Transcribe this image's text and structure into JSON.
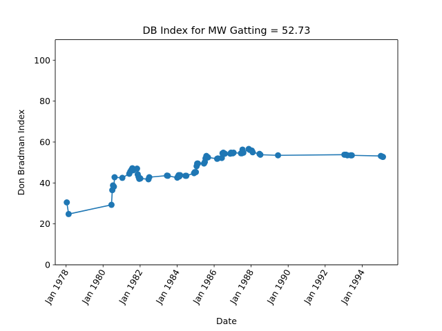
{
  "chart_data": {
    "type": "line",
    "title": "DB Index for MW Gatting = 52.73",
    "xlabel": "Date",
    "ylabel": "Don Bradman Index",
    "xlim": [
      "1977-06-01",
      "1995-12-05"
    ],
    "ylim": [
      0,
      110
    ],
    "grid": false,
    "color": "#1f77b4",
    "x_ticks": [
      {
        "date": "1978-01-01",
        "label": "Jan 1978"
      },
      {
        "date": "1980-01-01",
        "label": "Jan 1980"
      },
      {
        "date": "1982-01-01",
        "label": "Jan 1982"
      },
      {
        "date": "1984-01-01",
        "label": "Jan 1984"
      },
      {
        "date": "1986-01-01",
        "label": "Jan 1986"
      },
      {
        "date": "1988-01-01",
        "label": "Jan 1988"
      },
      {
        "date": "1990-01-01",
        "label": "Jan 1990"
      },
      {
        "date": "1992-01-01",
        "label": "Jan 1992"
      },
      {
        "date": "1994-01-01",
        "label": "Jan 1994"
      }
    ],
    "y_ticks": [
      0,
      20,
      40,
      60,
      80,
      100
    ],
    "series": [
      {
        "x": [
          "1978-01-15",
          "1978-02-20",
          "1980-06-15",
          "1980-07-01",
          "1980-07-15",
          "1980-08-01",
          "1980-08-15",
          "1981-01-15",
          "1981-06-01",
          "1981-06-20",
          "1981-07-15",
          "1981-08-01",
          "1981-08-15",
          "1981-09-01",
          "1981-11-01",
          "1981-11-15",
          "1981-12-01",
          "1981-12-15",
          "1982-01-05",
          "1982-06-15",
          "1982-07-01",
          "1983-06-15",
          "1983-07-01",
          "1984-01-05",
          "1984-01-20",
          "1984-02-01",
          "1984-02-15",
          "1984-03-01",
          "1984-06-15",
          "1984-07-01",
          "1984-12-01",
          "1984-12-15",
          "1985-01-05",
          "1985-01-20",
          "1985-02-01",
          "1985-02-15",
          "1985-06-15",
          "1985-07-01",
          "1985-07-15",
          "1985-08-01",
          "1985-08-15",
          "1985-09-01",
          "1986-03-01",
          "1986-03-15",
          "1986-06-01",
          "1986-06-15",
          "1986-07-01",
          "1986-07-15",
          "1986-08-01",
          "1986-11-15",
          "1986-12-01",
          "1986-12-15",
          "1987-01-05",
          "1987-01-20",
          "1987-06-15",
          "1987-07-01",
          "1987-07-15",
          "1987-08-01",
          "1987-11-15",
          "1987-12-01",
          "1988-01-15",
          "1988-02-01",
          "1988-06-15",
          "1988-07-01",
          "1989-06-15",
          "1993-01-15",
          "1993-02-15",
          "1993-03-15",
          "1993-05-20",
          "1993-06-10",
          "1995-01-05",
          "1995-01-20",
          "1995-02-05",
          "1995-02-15"
        ],
        "y": [
          30.5,
          24.8,
          29.3,
          36.5,
          38.8,
          38.2,
          42.8,
          42.5,
          44.5,
          45.5,
          46.5,
          47.2,
          46.2,
          46.6,
          47.0,
          44.2,
          43.0,
          42.0,
          42.2,
          41.8,
          42.8,
          43.6,
          43.5,
          42.6,
          43.2,
          43.8,
          43.2,
          43.8,
          43.5,
          43.5,
          44.8,
          45.3,
          45.3,
          48.2,
          49.5,
          49.5,
          49.5,
          50.2,
          52.0,
          53.2,
          52.8,
          52.5,
          51.8,
          52.0,
          52.2,
          54.5,
          54.8,
          54.5,
          54.3,
          54.3,
          54.8,
          54.5,
          54.5,
          54.8,
          54.5,
          54.5,
          56.3,
          54.8,
          56.6,
          56.2,
          55.8,
          55.0,
          54.2,
          53.8,
          53.5,
          53.8,
          53.8,
          53.5,
          53.5,
          53.5,
          53.2,
          53.0,
          52.8,
          52.73
        ]
      }
    ]
  }
}
